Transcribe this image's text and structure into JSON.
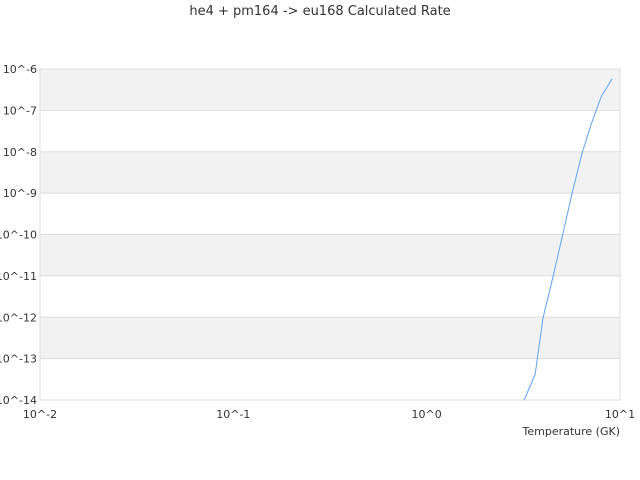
{
  "chart_data": {
    "type": "line",
    "title": "he4 + pm164 -> eu168 Calculated Rate",
    "xlabel": "Temperature (GK)",
    "ylabel": "",
    "x_scale": "log",
    "y_scale": "log",
    "xlim": [
      0.01,
      10
    ],
    "ylim": [
      1e-14,
      1e-06
    ],
    "x_ticks": [
      "10^-2",
      "10^-1",
      "10^0",
      "10^1"
    ],
    "y_ticks": [
      "10^-6",
      "10^-7",
      "10^-8",
      "10^-9",
      "10^-10",
      "10^-11",
      "10^-12",
      "10^-13",
      "10^-14"
    ],
    "grid": true,
    "series": [
      {
        "color": "#5fa2f5",
        "x": [
          3.19,
          3.64,
          4.0,
          4.5,
          5.08,
          5.65,
          6.37,
          7.08,
          7.98,
          9.1
        ],
        "y": [
          1e-14,
          4.1e-14,
          9.8e-13,
          9.5e-12,
          1.1e-10,
          1e-09,
          9.3e-09,
          4.5e-08,
          2.1e-07,
          5.8e-07
        ]
      }
    ]
  }
}
